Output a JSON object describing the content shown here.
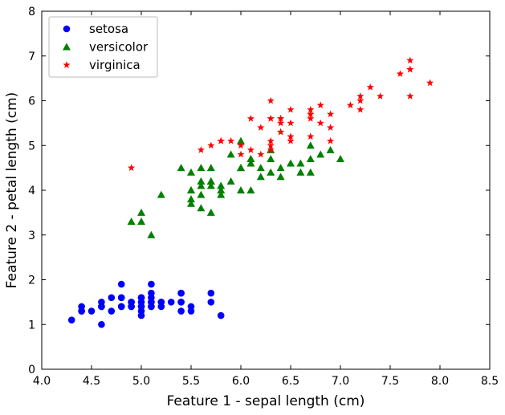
{
  "chart_data": {
    "type": "scatter",
    "xlabel": "Feature 1 - sepal length (cm)",
    "ylabel": "Feature 2 - petal length (cm)",
    "xlim": [
      4.0,
      8.5
    ],
    "ylim": [
      0,
      8
    ],
    "xticks": [
      "4.0",
      "4.5",
      "5.0",
      "5.5",
      "6.0",
      "6.5",
      "7.0",
      "7.5",
      "8.0",
      "8.5"
    ],
    "yticks": [
      "0",
      "1",
      "2",
      "3",
      "4",
      "5",
      "6",
      "7",
      "8"
    ],
    "grid": false,
    "legend_position": "top-left",
    "series": [
      {
        "name": "setosa",
        "marker": "circle",
        "color": "#0000ff",
        "points": [
          [
            5.1,
            1.4
          ],
          [
            4.9,
            1.4
          ],
          [
            4.7,
            1.3
          ],
          [
            4.6,
            1.5
          ],
          [
            5.0,
            1.4
          ],
          [
            5.4,
            1.7
          ],
          [
            4.6,
            1.4
          ],
          [
            5.0,
            1.5
          ],
          [
            4.4,
            1.4
          ],
          [
            4.9,
            1.5
          ],
          [
            5.4,
            1.5
          ],
          [
            4.8,
            1.6
          ],
          [
            4.8,
            1.4
          ],
          [
            4.3,
            1.1
          ],
          [
            5.8,
            1.2
          ],
          [
            5.7,
            1.5
          ],
          [
            5.4,
            1.3
          ],
          [
            5.1,
            1.4
          ],
          [
            5.7,
            1.7
          ],
          [
            5.1,
            1.5
          ],
          [
            5.4,
            1.7
          ],
          [
            5.1,
            1.5
          ],
          [
            4.6,
            1.0
          ],
          [
            5.1,
            1.7
          ],
          [
            4.8,
            1.9
          ],
          [
            5.0,
            1.6
          ],
          [
            5.0,
            1.6
          ],
          [
            5.2,
            1.5
          ],
          [
            5.2,
            1.4
          ],
          [
            4.7,
            1.6
          ],
          [
            4.8,
            1.6
          ],
          [
            5.4,
            1.5
          ],
          [
            5.2,
            1.5
          ],
          [
            5.5,
            1.4
          ],
          [
            4.9,
            1.5
          ],
          [
            5.0,
            1.2
          ],
          [
            5.5,
            1.3
          ],
          [
            4.9,
            1.4
          ],
          [
            4.4,
            1.3
          ],
          [
            5.1,
            1.5
          ],
          [
            5.0,
            1.3
          ],
          [
            4.5,
            1.3
          ],
          [
            4.4,
            1.3
          ],
          [
            5.0,
            1.6
          ],
          [
            5.1,
            1.9
          ],
          [
            4.8,
            1.4
          ],
          [
            5.1,
            1.6
          ],
          [
            4.6,
            1.4
          ],
          [
            5.3,
            1.5
          ],
          [
            5.0,
            1.4
          ]
        ]
      },
      {
        "name": "versicolor",
        "marker": "triangle",
        "color": "#008000",
        "points": [
          [
            7.0,
            4.7
          ],
          [
            6.4,
            4.5
          ],
          [
            6.9,
            4.9
          ],
          [
            5.5,
            4.0
          ],
          [
            6.5,
            4.6
          ],
          [
            5.7,
            4.5
          ],
          [
            6.3,
            4.7
          ],
          [
            4.9,
            3.3
          ],
          [
            6.6,
            4.6
          ],
          [
            5.2,
            3.9
          ],
          [
            5.0,
            3.5
          ],
          [
            5.9,
            4.2
          ],
          [
            6.0,
            4.0
          ],
          [
            6.1,
            4.7
          ],
          [
            5.6,
            3.6
          ],
          [
            6.7,
            4.4
          ],
          [
            5.6,
            4.5
          ],
          [
            5.8,
            4.1
          ],
          [
            6.2,
            4.5
          ],
          [
            5.6,
            3.9
          ],
          [
            5.9,
            4.8
          ],
          [
            6.1,
            4.0
          ],
          [
            6.3,
            4.9
          ],
          [
            6.1,
            4.7
          ],
          [
            6.4,
            4.3
          ],
          [
            6.6,
            4.4
          ],
          [
            6.8,
            4.8
          ],
          [
            6.7,
            5.0
          ],
          [
            6.0,
            4.5
          ],
          [
            5.7,
            3.5
          ],
          [
            5.5,
            3.8
          ],
          [
            5.5,
            3.7
          ],
          [
            5.8,
            3.9
          ],
          [
            6.0,
            5.1
          ],
          [
            5.4,
            4.5
          ],
          [
            6.0,
            4.5
          ],
          [
            6.7,
            4.7
          ],
          [
            6.3,
            4.4
          ],
          [
            5.6,
            4.1
          ],
          [
            5.5,
            4.0
          ],
          [
            5.5,
            4.4
          ],
          [
            6.1,
            4.6
          ],
          [
            5.8,
            4.0
          ],
          [
            5.0,
            3.3
          ],
          [
            5.6,
            4.2
          ],
          [
            5.7,
            4.2
          ],
          [
            5.7,
            4.2
          ],
          [
            6.2,
            4.3
          ],
          [
            5.1,
            3.0
          ],
          [
            5.7,
            4.1
          ]
        ]
      },
      {
        "name": "virginica",
        "marker": "star",
        "color": "#ff0000",
        "points": [
          [
            6.3,
            6.0
          ],
          [
            5.8,
            5.1
          ],
          [
            7.1,
            5.9
          ],
          [
            6.3,
            5.6
          ],
          [
            6.5,
            5.8
          ],
          [
            7.6,
            6.6
          ],
          [
            4.9,
            4.5
          ],
          [
            7.3,
            6.3
          ],
          [
            6.7,
            5.8
          ],
          [
            7.2,
            6.1
          ],
          [
            6.5,
            5.1
          ],
          [
            6.4,
            5.3
          ],
          [
            6.8,
            5.5
          ],
          [
            5.7,
            5.0
          ],
          [
            5.8,
            5.1
          ],
          [
            6.4,
            5.3
          ],
          [
            6.5,
            5.5
          ],
          [
            7.7,
            6.7
          ],
          [
            7.7,
            6.9
          ],
          [
            6.0,
            5.0
          ],
          [
            6.9,
            5.7
          ],
          [
            5.6,
            4.9
          ],
          [
            7.7,
            6.7
          ],
          [
            6.3,
            4.9
          ],
          [
            6.7,
            5.7
          ],
          [
            7.2,
            6.0
          ],
          [
            6.2,
            4.8
          ],
          [
            6.1,
            4.9
          ],
          [
            6.4,
            5.6
          ],
          [
            7.2,
            5.8
          ],
          [
            7.4,
            6.1
          ],
          [
            7.9,
            6.4
          ],
          [
            6.4,
            5.6
          ],
          [
            6.3,
            5.1
          ],
          [
            6.1,
            5.6
          ],
          [
            7.7,
            6.1
          ],
          [
            6.3,
            5.6
          ],
          [
            6.4,
            5.5
          ],
          [
            6.0,
            4.8
          ],
          [
            6.9,
            5.4
          ],
          [
            6.7,
            5.6
          ],
          [
            6.9,
            5.1
          ],
          [
            5.8,
            5.1
          ],
          [
            6.8,
            5.9
          ],
          [
            6.7,
            5.7
          ],
          [
            6.7,
            5.2
          ],
          [
            6.3,
            5.0
          ],
          [
            6.5,
            5.2
          ],
          [
            6.2,
            5.4
          ],
          [
            5.9,
            5.1
          ]
        ]
      }
    ]
  }
}
